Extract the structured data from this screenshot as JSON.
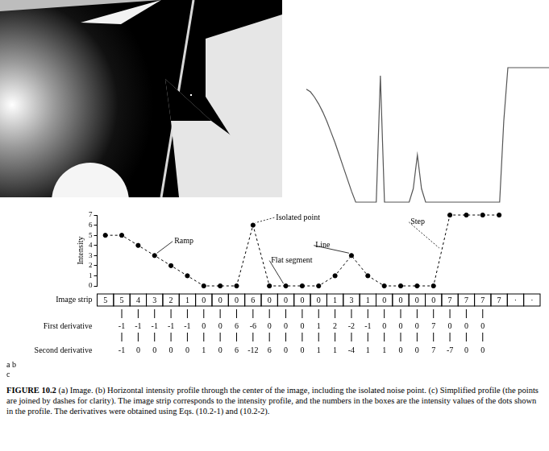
{
  "panel_labels": [
    "a",
    "b",
    "c"
  ],
  "caption": {
    "label": "FIGURE 10.2",
    "text": "(a) Image. (b) Horizontal intensity profile through the center of the image, including the isolated noise point. (c) Simplified profile (the points are joined by dashes for clarity). The image strip corresponds to the intensity profile, and the numbers in the boxes are the intensity values of the dots shown in the profile. The derivatives were obtained using Eqs. (10.2-1) and (10.2-2)."
  },
  "chart_data": [
    {
      "type": "line",
      "color": "#555555",
      "tick_labels": false,
      "grid": false,
      "values": [
        0.84,
        0.82,
        0.78,
        0.73,
        0.67,
        0.6,
        0.52,
        0.44,
        0.35,
        0.26,
        0.17,
        0.08,
        0,
        0,
        0,
        0,
        0,
        0,
        0.94,
        0,
        0,
        0,
        0,
        0,
        0,
        0,
        0.1,
        0.35,
        0.1,
        0,
        0,
        0,
        0,
        0,
        0,
        0,
        0,
        0,
        0,
        0,
        0,
        0,
        0,
        0,
        0,
        0,
        0,
        0,
        0.6,
        1,
        1,
        1,
        1,
        1,
        1,
        1,
        1,
        1,
        1,
        1
      ]
    },
    {
      "type": "line",
      "color": "#000000",
      "marker": "circle",
      "line_style": "dashed",
      "tick_labels": "y",
      "grid": false,
      "y_label": "Intensity",
      "categories": [
        null,
        null,
        null,
        null,
        null,
        null,
        null,
        null,
        null,
        null,
        null,
        null,
        null,
        null,
        null,
        null,
        null,
        null,
        null,
        null,
        null,
        null,
        null,
        null,
        null,
        null,
        null
      ],
      "values": [
        5,
        5,
        4,
        3,
        2,
        1,
        0,
        0,
        0,
        6,
        0,
        0,
        0,
        0,
        1,
        3,
        1,
        0,
        0,
        0,
        0,
        7,
        7,
        7,
        7,
        null,
        null
      ],
      "ylim": [
        0,
        7
      ],
      "yticks": [
        0,
        1,
        2,
        3,
        4,
        5,
        6,
        7
      ],
      "annotations": [
        "Isolated point",
        "Ramp",
        "Line",
        "Flat segment",
        "Step"
      ],
      "strip": {
        "label": "Image strip",
        "values": [
          5,
          5,
          4,
          3,
          2,
          1,
          0,
          0,
          0,
          6,
          0,
          0,
          0,
          0,
          1,
          3,
          1,
          0,
          0,
          0,
          0,
          7,
          7,
          7,
          7,
          "·",
          "·"
        ]
      },
      "first_derivative": {
        "label": "First derivative",
        "values": [
          null,
          -1,
          -1,
          -1,
          -1,
          -1,
          0,
          0,
          6,
          -6,
          0,
          0,
          0,
          1,
          2,
          -2,
          -1,
          0,
          0,
          0,
          7,
          0,
          0,
          0,
          null,
          null,
          null
        ]
      },
      "second_derivative": {
        "label": "Second derivative",
        "values": [
          null,
          -1,
          0,
          0,
          0,
          0,
          1,
          0,
          6,
          -12,
          6,
          0,
          0,
          1,
          1,
          -4,
          1,
          1,
          0,
          0,
          7,
          -7,
          0,
          0,
          null,
          null,
          null
        ]
      }
    }
  ]
}
